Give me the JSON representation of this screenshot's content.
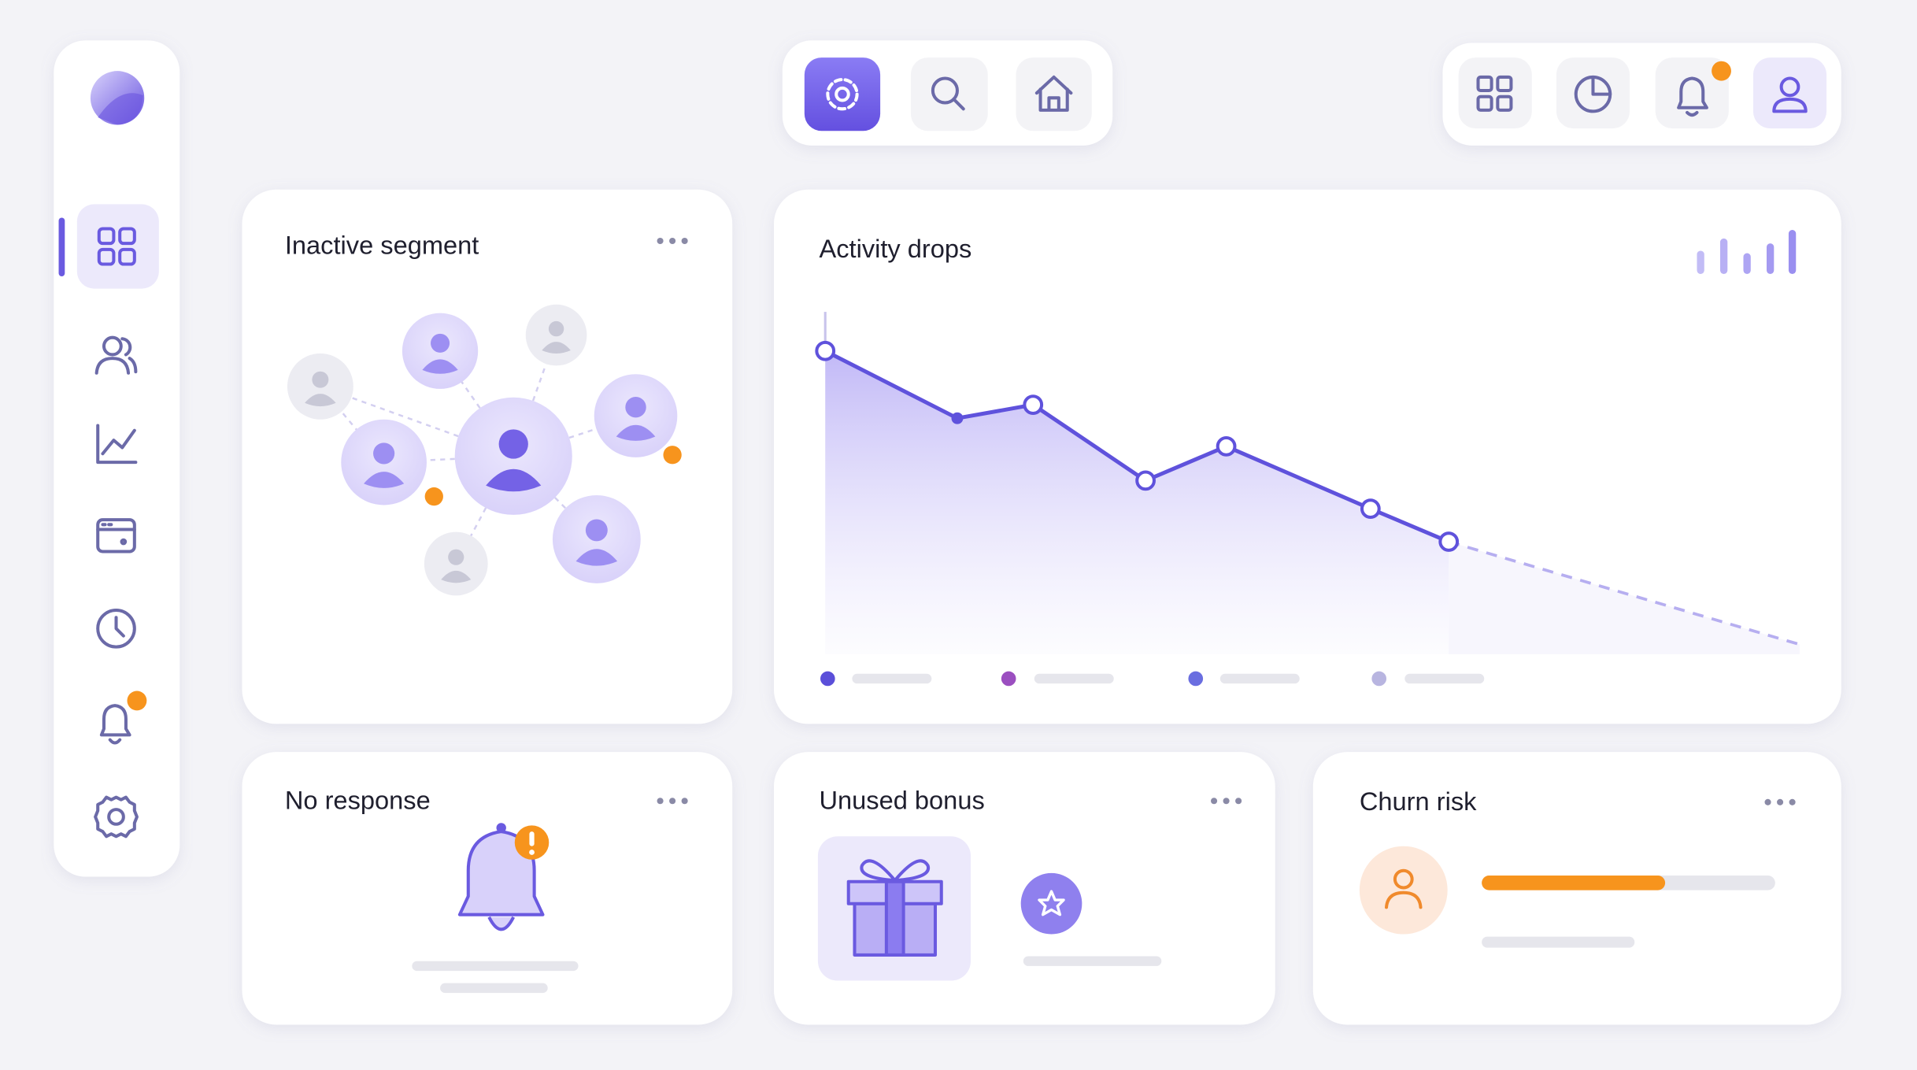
{
  "cards": [
    {
      "title": "Inactive segment"
    },
    {
      "title": "Activity drops"
    },
    {
      "title": "No response"
    },
    {
      "title": "Unused bonus"
    },
    {
      "title": "Churn risk"
    }
  ]
}
